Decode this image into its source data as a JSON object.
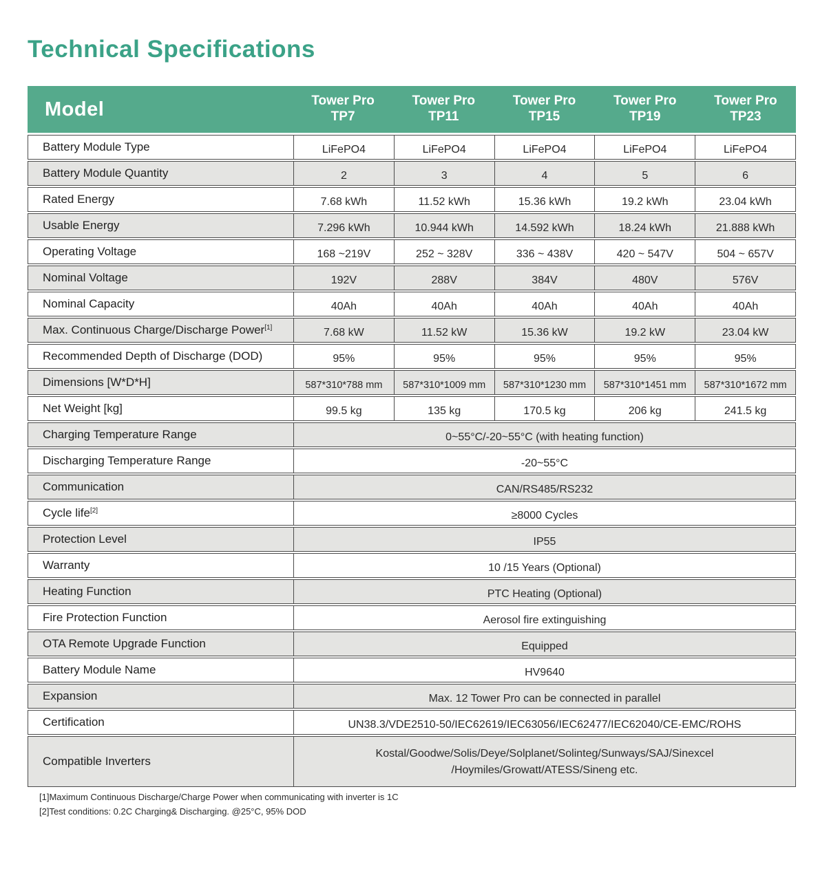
{
  "page": {
    "title": "Technical Specifications"
  },
  "colors": {
    "title_green": "#3ba287",
    "header_green": "#55aa8c",
    "row_alt_gray": "#e4e4e2",
    "border": "#4b4b4b"
  },
  "table": {
    "model_label": "Model",
    "columns": [
      {
        "line1": "Tower Pro",
        "line2": "TP7"
      },
      {
        "line1": "Tower Pro",
        "line2": "TP11"
      },
      {
        "line1": "Tower Pro",
        "line2": "TP15"
      },
      {
        "line1": "Tower Pro",
        "line2": "TP19"
      },
      {
        "line1": "Tower Pro",
        "line2": "TP23"
      }
    ],
    "rows": [
      {
        "label": "Battery Module Type",
        "values": [
          "LiFePO4",
          "LiFePO4",
          "LiFePO4",
          "LiFePO4",
          "LiFePO4"
        ]
      },
      {
        "label": "Battery Module Quantity",
        "values": [
          "2",
          "3",
          "4",
          "5",
          "6"
        ]
      },
      {
        "label": "Rated Energy",
        "values": [
          "7.68 kWh",
          "11.52 kWh",
          "15.36 kWh",
          "19.2 kWh",
          "23.04 kWh"
        ]
      },
      {
        "label": "Usable Energy",
        "values": [
          "7.296 kWh",
          "10.944 kWh",
          "14.592 kWh",
          "18.24 kWh",
          "21.888 kWh"
        ]
      },
      {
        "label": "Operating Voltage",
        "values": [
          "168 ~219V",
          "252 ~ 328V",
          "336 ~ 438V",
          "420 ~ 547V",
          "504 ~ 657V"
        ]
      },
      {
        "label": "Nominal Voltage",
        "values": [
          "192V",
          "288V",
          "384V",
          "480V",
          "576V"
        ]
      },
      {
        "label": "Nominal Capacity",
        "values": [
          "40Ah",
          "40Ah",
          "40Ah",
          "40Ah",
          "40Ah"
        ]
      },
      {
        "label": "Max. Continuous Charge/Discharge Power",
        "sup": "[1]",
        "values": [
          "7.68 kW",
          "11.52 kW",
          "15.36 kW",
          "19.2 kW",
          "23.04 kW"
        ]
      },
      {
        "label": "Recommended Depth of Discharge (DOD)",
        "values": [
          "95%",
          "95%",
          "95%",
          "95%",
          "95%"
        ]
      },
      {
        "label": "Dimensions [W*D*H]",
        "small": true,
        "values": [
          "587*310*788 mm",
          "587*310*1009 mm",
          "587*310*1230 mm",
          "587*310*1451 mm",
          "587*310*1672 mm"
        ]
      },
      {
        "label": "Net Weight [kg]",
        "values": [
          "99.5 kg",
          "135 kg",
          "170.5 kg",
          "206 kg",
          "241.5 kg"
        ]
      },
      {
        "label": "Charging Temperature Range",
        "span": "0~55°C/-20~55°C (with heating function)"
      },
      {
        "label": "Discharging Temperature Range",
        "span": "-20~55°C"
      },
      {
        "label": "Communication",
        "span": "CAN/RS485/RS232"
      },
      {
        "label": "Cycle life",
        "sup": "[2]",
        "span": "≥8000 Cycles"
      },
      {
        "label": "Protection Level",
        "span": "IP55"
      },
      {
        "label": "Warranty",
        "span": "10 /15 Years (Optional)"
      },
      {
        "label": "Heating Function",
        "span": "PTC Heating (Optional)"
      },
      {
        "label": "Fire Protection Function",
        "span": "Aerosol fire extinguishing"
      },
      {
        "label": "OTA Remote Upgrade Function",
        "span": "Equipped"
      },
      {
        "label": "Battery Module Name",
        "span": "HV9640"
      },
      {
        "label": "Expansion",
        "span": "Max. 12 Tower Pro can be connected in parallel"
      },
      {
        "label": "Certification",
        "span": "UN38.3/VDE2510-50/IEC62619/IEC63056/IEC62477/IEC62040/CE-EMC/ROHS"
      },
      {
        "label": "Compatible Inverters",
        "tall": true,
        "span_lines": [
          "Kostal/Goodwe/Solis/Deye/Solplanet/Solinteg/Sunways/SAJ/Sinexcel",
          "/Hoymiles/Growatt/ATESS/Sineng etc."
        ]
      }
    ]
  },
  "footnotes": [
    "[1]Maximum Continuous Discharge/Charge Power when communicating with inverter is 1C",
    "[2]Test conditions: 0.2C Charging& Discharging. @25°C, 95% DOD"
  ]
}
